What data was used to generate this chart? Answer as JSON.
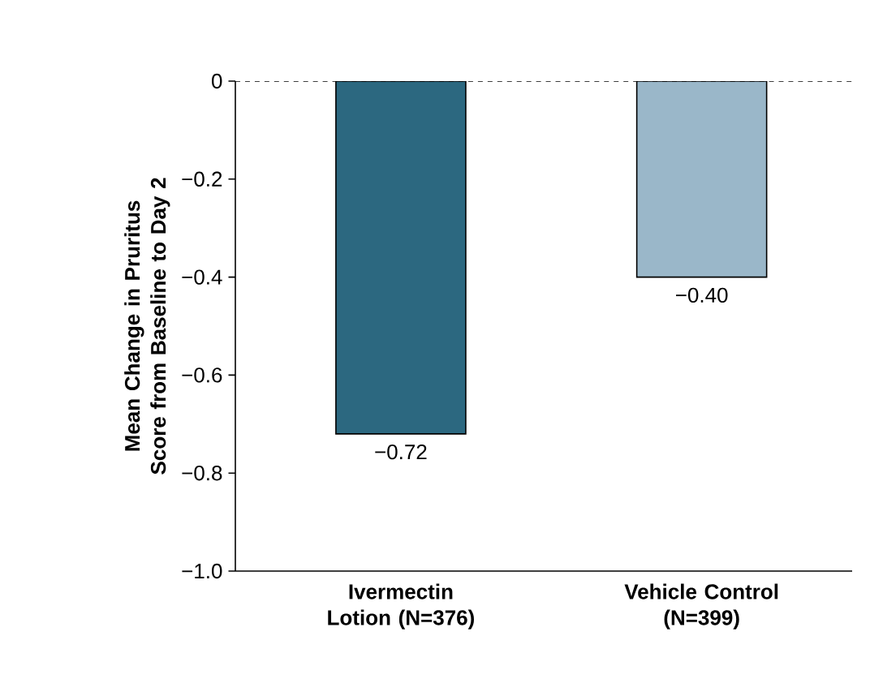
{
  "chart_data": {
    "type": "bar",
    "ylabel": "Mean Change in Pruritus Score from Baseline to Day 2",
    "categories": [
      "Ivermectin Lotion (N=376)",
      "Vehicle Control (N=399)"
    ],
    "values": [
      -0.72,
      -0.4
    ],
    "colors": [
      "#2c6880",
      "#9ab7c9"
    ],
    "value_labels": [
      "−0.72",
      "−0.40"
    ],
    "ylim": [
      -1.0,
      0
    ],
    "yticks": [
      {
        "value": -1.0,
        "label": "−1.0"
      },
      {
        "value": -0.8,
        "label": "−0.8"
      },
      {
        "value": -0.6,
        "label": "−0.6"
      },
      {
        "value": -0.4,
        "label": "−0.4"
      },
      {
        "value": -0.2,
        "label": "−0.2"
      },
      0
    ],
    "ref_lines": [
      {
        "axis": "y",
        "value": 0,
        "line_style": "dashed"
      }
    ],
    "grid": false
  }
}
